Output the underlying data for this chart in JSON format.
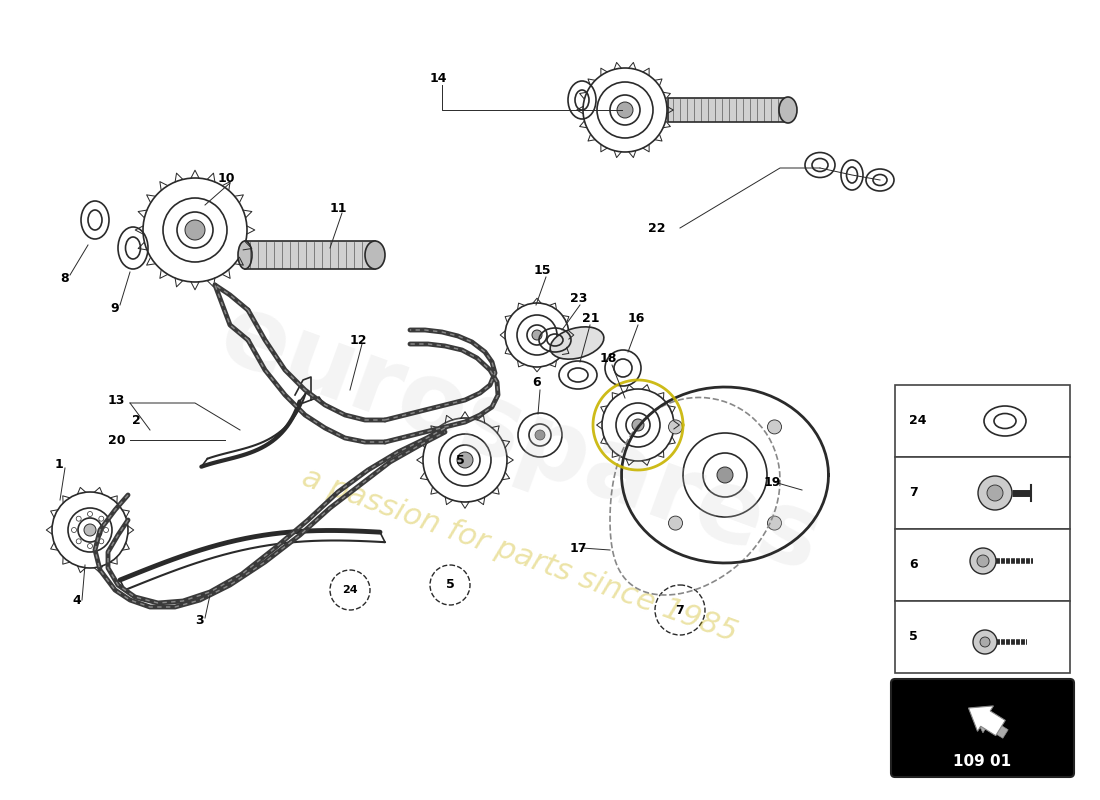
{
  "background_color": "#ffffff",
  "watermark_text1": "eurospares",
  "watermark_text2": "a passion for parts since 1985",
  "part_number_box": "109 01",
  "sidebar_items": [
    {
      "label": "24"
    },
    {
      "label": "7"
    },
    {
      "label": "6"
    },
    {
      "label": "5"
    }
  ],
  "fig_width": 11.0,
  "fig_height": 8.0,
  "dpi": 100
}
